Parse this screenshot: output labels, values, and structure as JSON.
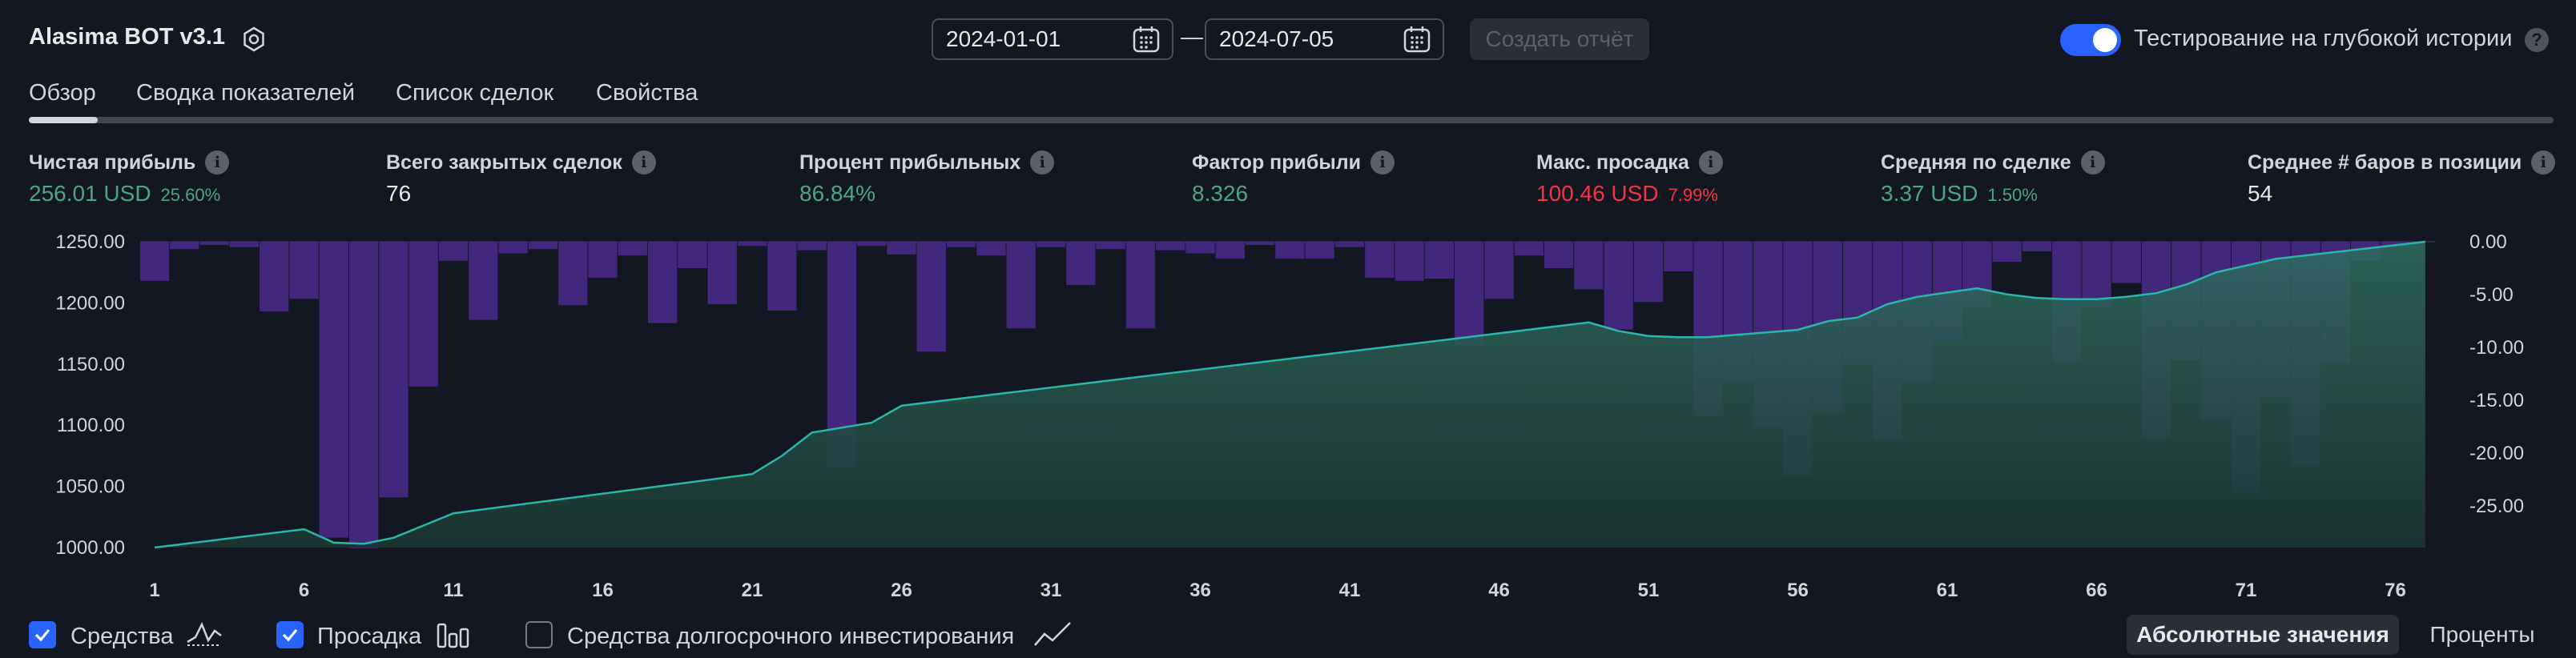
{
  "header": {
    "app_title": "Alasima BOT v3.1",
    "date_from": "2024-01-01",
    "date_to": "2024-07-05",
    "date_separator": "—",
    "create_report_label": "Создать отчёт",
    "deep_history_label": "Тестирование на глубокой истории",
    "deep_history_enabled": true,
    "help_glyph": "?"
  },
  "tabs": [
    {
      "label": "Обзор",
      "active": true
    },
    {
      "label": "Сводка показателей",
      "active": false
    },
    {
      "label": "Список сделок",
      "active": false
    },
    {
      "label": "Свойства",
      "active": false
    }
  ],
  "metrics": [
    {
      "label": "Чистая прибыль",
      "value": "256.01 USD",
      "sub": "25.60%",
      "color": "green"
    },
    {
      "label": "Всего закрытых сделок",
      "value": "76",
      "sub": "",
      "color": "white"
    },
    {
      "label": "Процент прибыльных",
      "value": "86.84%",
      "sub": "",
      "color": "green"
    },
    {
      "label": "Фактор прибыли",
      "value": "8.326",
      "sub": "",
      "color": "green"
    },
    {
      "label": "Макс. просадка",
      "value": "100.46 USD",
      "sub": "7.99%",
      "color": "red"
    },
    {
      "label": "Средняя по сделке",
      "value": "3.37 USD",
      "sub": "1.50%",
      "color": "green"
    },
    {
      "label": "Среднее # баров в позиции",
      "value": "54",
      "sub": "",
      "color": "white"
    }
  ],
  "info_glyph": "i",
  "chart_data": {
    "type": "line",
    "x_ticks": [
      1,
      6,
      11,
      16,
      21,
      26,
      31,
      36,
      41,
      46,
      51,
      56,
      61,
      66,
      71,
      76
    ],
    "y_left_ticks": [
      "1250.00",
      "1200.00",
      "1150.00",
      "1100.00",
      "1050.00",
      "1000.00"
    ],
    "y_left_range": [
      1000,
      1250
    ],
    "y_right_ticks": [
      "0.00",
      "-5.00",
      "-10.00",
      "-15.00",
      "-20.00",
      "-25.00"
    ],
    "y_right_range": [
      -29,
      0
    ],
    "equity": {
      "x": [
        1,
        6,
        7,
        8,
        9,
        10,
        11,
        21,
        22,
        23,
        25,
        26,
        49,
        50,
        51,
        52,
        53,
        54,
        55,
        56,
        57,
        58,
        59,
        60,
        62,
        63,
        64,
        65,
        66,
        67,
        68,
        69,
        70,
        72,
        77
      ],
      "y": [
        1000,
        1015,
        1004,
        1003,
        1008,
        1018,
        1028,
        1060,
        1075,
        1094,
        1102,
        1116,
        1184,
        1177,
        1173,
        1172,
        1172,
        1174,
        1176,
        1178,
        1185,
        1188,
        1199,
        1205,
        1212,
        1207,
        1204,
        1203,
        1203,
        1205,
        1208,
        1215,
        1225,
        1236,
        1250
      ]
    },
    "drawdown": [
      -3.7,
      -0.7,
      -0.3,
      -0.5,
      -6.6,
      -5.4,
      -28,
      -29,
      -24.2,
      -13.7,
      -1.8,
      -7.4,
      -1.1,
      -0.7,
      -6,
      -3.4,
      -1.3,
      -7.7,
      -2.5,
      -5.9,
      -0.4,
      -6.5,
      -0.8,
      -21.4,
      -0.4,
      -1.2,
      -10.4,
      -0.5,
      -1.3,
      -8.2,
      -0.5,
      -4.1,
      -0.7,
      -8.2,
      -0.8,
      -1.1,
      -1.6,
      -0.3,
      -1.6,
      -1.6,
      -0.5,
      -3.4,
      -3.7,
      -3.5,
      -9.8,
      -5.4,
      -1.3,
      -2.5,
      -4.5,
      -8.3,
      -5.7,
      -2.8,
      -16.5,
      -13.3,
      -17.6,
      -22.1,
      -16.1,
      -11.6,
      -18.8,
      -13.3,
      -9.3,
      -6.2,
      -1.9,
      -0.9,
      -11.4,
      -6.2,
      -3.9,
      -18.6,
      -11.2,
      -16.8,
      -23.8,
      -14.7,
      -21.2,
      -11.5,
      -1.8,
      -0.5
    ],
    "series_colors": {
      "equity_line": "#2ab7a9",
      "equity_fill": "#1e4a44",
      "drawdown": "#4c2a8c"
    }
  },
  "legend": [
    {
      "label": "Средства",
      "checked": true
    },
    {
      "label": "Просадка",
      "checked": true
    },
    {
      "label": "Средства долгосрочного инвестирования",
      "checked": false
    }
  ],
  "view_mode": {
    "absolute_label": "Абсолютные значения",
    "percent_label": "Проценты"
  }
}
